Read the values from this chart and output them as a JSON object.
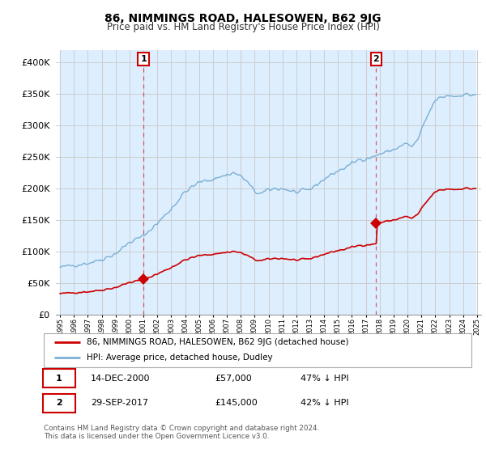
{
  "title": "86, NIMMINGS ROAD, HALESOWEN, B62 9JG",
  "subtitle": "Price paid vs. HM Land Registry's House Price Index (HPI)",
  "title_fontsize": 10,
  "subtitle_fontsize": 8.5,
  "sale1_year": 2001.0,
  "sale1_price": 57000,
  "sale1_label": "1",
  "sale2_year": 2017.75,
  "sale2_price": 145000,
  "sale2_label": "2",
  "property_color": "#cc0000",
  "hpi_color": "#7ab0d4",
  "hpi_fill_color": "#ddeeff",
  "annotation_box_color": "#cc0000",
  "legend_property": "86, NIMMINGS ROAD, HALESOWEN, B62 9JG (detached house)",
  "legend_hpi": "HPI: Average price, detached house, Dudley",
  "table_row1": [
    "1",
    "14-DEC-2000",
    "£57,000",
    "47% ↓ HPI"
  ],
  "table_row2": [
    "2",
    "29-SEP-2017",
    "£145,000",
    "42% ↓ HPI"
  ],
  "footnote1": "Contains HM Land Registry data © Crown copyright and database right 2024.",
  "footnote2": "This data is licensed under the Open Government Licence v3.0.",
  "ylim": [
    0,
    420000
  ],
  "yticks": [
    0,
    50000,
    100000,
    150000,
    200000,
    250000,
    300000,
    350000,
    400000
  ],
  "background_color": "#ffffff",
  "grid_color": "#cccccc",
  "chart_bg": "#f0f5ff"
}
